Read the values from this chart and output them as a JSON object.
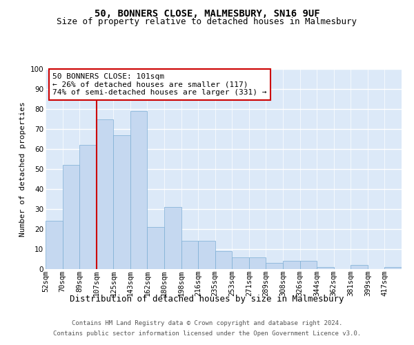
{
  "title": "50, BONNERS CLOSE, MALMESBURY, SN16 9UF",
  "subtitle": "Size of property relative to detached houses in Malmesbury",
  "xlabel": "Distribution of detached houses by size in Malmesbury",
  "ylabel": "Number of detached properties",
  "categories": [
    "52sqm",
    "70sqm",
    "89sqm",
    "107sqm",
    "125sqm",
    "143sqm",
    "162sqm",
    "180sqm",
    "198sqm",
    "216sqm",
    "235sqm",
    "253sqm",
    "271sqm",
    "289sqm",
    "308sqm",
    "326sqm",
    "344sqm",
    "362sqm",
    "381sqm",
    "399sqm",
    "417sqm"
  ],
  "values": [
    24,
    52,
    62,
    75,
    67,
    79,
    21,
    31,
    14,
    14,
    9,
    6,
    6,
    3,
    4,
    4,
    1,
    0,
    2,
    0,
    1
  ],
  "bar_color": "#c5d8f0",
  "bar_edge_color": "#7badd4",
  "background_color": "#dce9f8",
  "grid_color": "#ffffff",
  "vline_color": "#cc0000",
  "annotation_text": "50 BONNERS CLOSE: 101sqm\n← 26% of detached houses are smaller (117)\n74% of semi-detached houses are larger (331) →",
  "annotation_box_color": "#ffffff",
  "annotation_box_edge": "#cc0000",
  "ylim": [
    0,
    100
  ],
  "yticks": [
    0,
    10,
    20,
    30,
    40,
    50,
    60,
    70,
    80,
    90,
    100
  ],
  "footer_line1": "Contains HM Land Registry data © Crown copyright and database right 2024.",
  "footer_line2": "Contains public sector information licensed under the Open Government Licence v3.0.",
  "title_fontsize": 10,
  "subtitle_fontsize": 9,
  "ylabel_fontsize": 8,
  "xlabel_fontsize": 9,
  "tick_fontsize": 7.5,
  "annotation_fontsize": 8,
  "footer_fontsize": 6.5
}
